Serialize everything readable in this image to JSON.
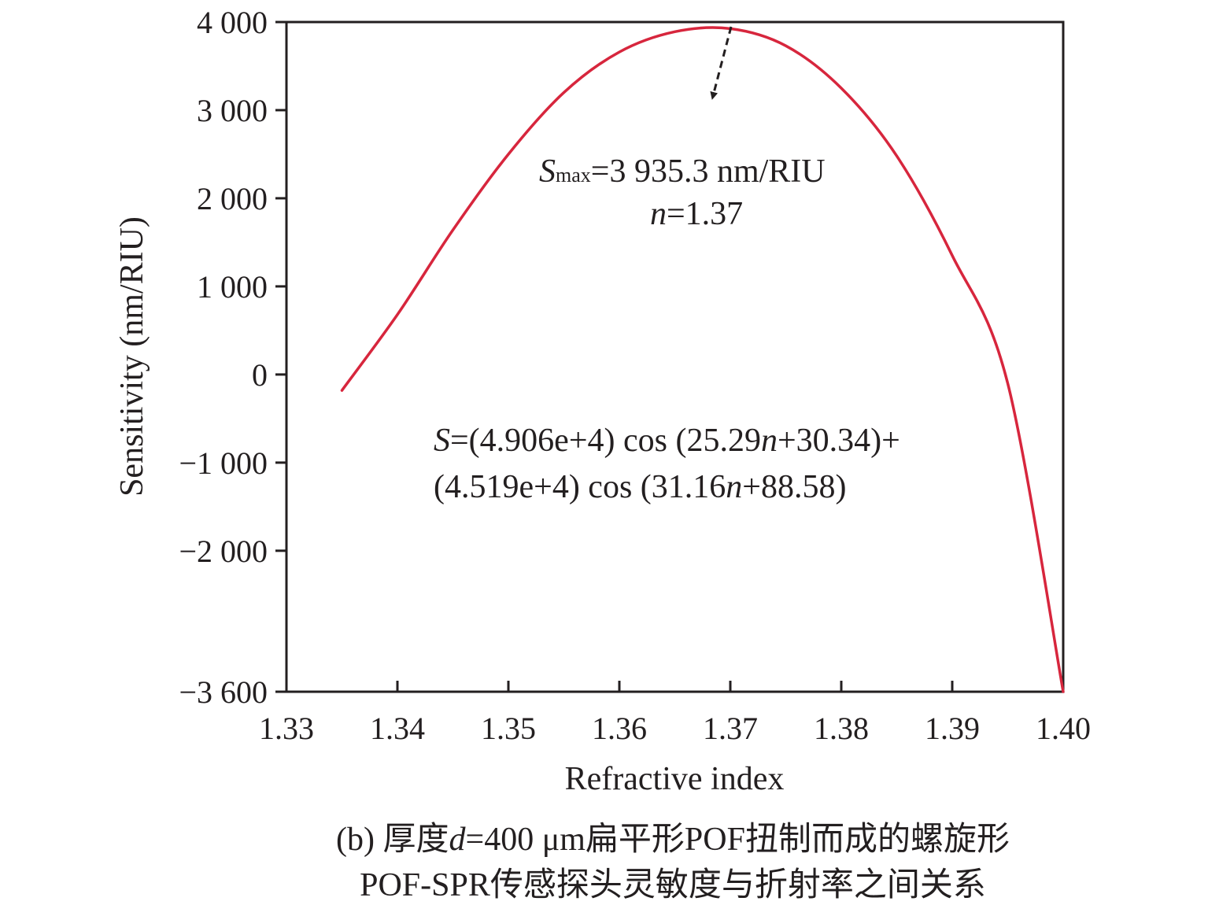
{
  "chart_data": {
    "type": "line",
    "xlabel": "Refractive index",
    "ylabel": "Sensitivity (nm/RIU)",
    "xlim": [
      1.33,
      1.4
    ],
    "ylim": [
      -3600,
      4000
    ],
    "x_ticks": [
      1.33,
      1.34,
      1.35,
      1.36,
      1.37,
      1.38,
      1.39,
      1.4
    ],
    "x_tick_labels": [
      "1.33",
      "1.34",
      "1.35",
      "1.36",
      "1.37",
      "1.38",
      "1.39",
      "1.40"
    ],
    "y_ticks": [
      4000,
      3000,
      2000,
      1000,
      0,
      -1000,
      -2000,
      -3600
    ],
    "y_tick_labels": [
      "4 000",
      "3 000",
      "2 000",
      "1 000",
      "0",
      "−1 000",
      "−2 000",
      "−3 600"
    ],
    "grid": false,
    "series": [
      {
        "color": "#d7263d",
        "x": [
          1.335,
          1.34,
          1.345,
          1.35,
          1.355,
          1.36,
          1.365,
          1.37,
          1.375,
          1.38,
          1.385,
          1.39,
          1.395,
          1.4
        ],
        "y": [
          -180,
          680,
          1640,
          2500,
          3200,
          3660,
          3890,
          3925,
          3730,
          3250,
          2480,
          1350,
          -100,
          -3600
        ]
      }
    ],
    "annotations": {
      "smax": {
        "s": "S",
        "sub": "max",
        "rest": "=3 935.3 nm/RIU"
      },
      "n_value": {
        "n": "n",
        "rest": "=1.37"
      },
      "fit_line_1": {
        "p1": "S",
        "p2": "=(4.906e+4) cos (25.29",
        "p3": "n",
        "p4": "+30.34)+"
      },
      "fit_line_2": {
        "p1": "(4.519e+4) cos (31.16",
        "p2": "n",
        "p3": "+88.58)"
      }
    },
    "caption": {
      "line1_part1": "(b) 厚度",
      "line1_var": "d",
      "line1_part2": "=400 μm扁平形POF扭制而成的螺旋形",
      "line2": "POF-SPR传感探头灵敏度与折射率之间关系"
    }
  }
}
